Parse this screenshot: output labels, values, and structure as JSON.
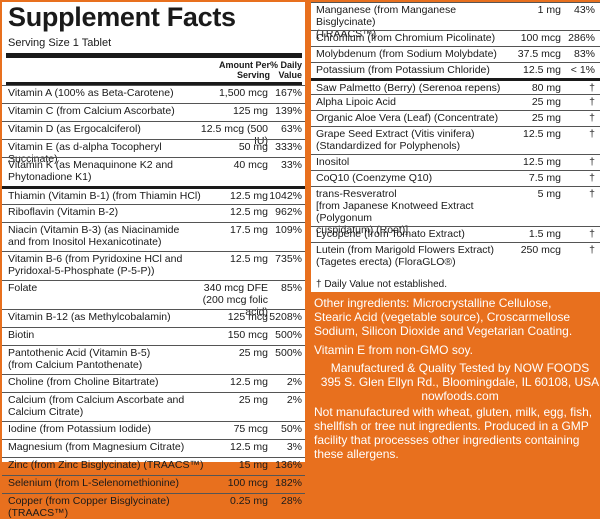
{
  "left": {
    "title": "Supplement Facts",
    "serving": "Serving Size 1 Tablet",
    "header": {
      "amount": "Amount Per\nServing",
      "dv": "% Daily\nValue"
    },
    "rows": [
      {
        "name": "Vitamin A (100% as Beta-Carotene)",
        "amount": "1,500 mcg",
        "dv": "167%"
      },
      {
        "name": "Vitamin C (from Calcium Ascorbate)",
        "amount": "125 mg",
        "dv": "139%"
      },
      {
        "name": "Vitamin D (as Ergocalciferol)",
        "amount": "12.5 mcg (500 IU)",
        "dv": "63%"
      },
      {
        "name": "Vitamin E (as d-alpha Tocopheryl Succinate)",
        "amount": "50 mg",
        "dv": "333%"
      },
      {
        "name": "Vitamin K (as Menaquinone K2 and\n   Phytonadione K1)",
        "amount": "40 mcg",
        "dv": "33%"
      },
      {
        "name": "Thiamin (Vitamin B-1) (from Thiamin HCl)",
        "amount": "12.5 mg",
        "dv": "1042%"
      },
      {
        "name": "Riboflavin (Vitamin B-2)",
        "amount": "12.5 mg",
        "dv": "962%"
      },
      {
        "name": "Niacin (Vitamin B-3) (as Niacinamide\n   and from Inositol Hexanicotinate)",
        "amount": "17.5 mg",
        "dv": "109%"
      },
      {
        "name": "Vitamin B-6 (from Pyridoxine HCl and\n   Pyridoxal-5-Phosphate (P-5-P))",
        "amount": "12.5 mg",
        "dv": "735%"
      },
      {
        "name": "Folate",
        "amount": "340 mcg DFE\n(200 mcg folic acid)",
        "dv": "85%"
      },
      {
        "name": "Vitamin B-12 (as Methylcobalamin)",
        "amount": "125 mcg",
        "dv": "5208%"
      },
      {
        "name": "Biotin",
        "amount": "150 mcg",
        "dv": "500%"
      },
      {
        "name": "Pantothenic Acid (Vitamin B-5)\n   (from Calcium Pantothenate)",
        "amount": "25 mg",
        "dv": "500%"
      },
      {
        "name": "Choline (from Choline Bitartrate)",
        "amount": "12.5 mg",
        "dv": "2%"
      },
      {
        "name": "Calcium (from Calcium Ascorbate and\n   Calcium Citrate)",
        "amount": "25 mg",
        "dv": "2%"
      },
      {
        "name": "Iodine (from Potassium Iodide)",
        "amount": "75 mcg",
        "dv": "50%"
      },
      {
        "name": "Magnesium (from Magnesium Citrate)",
        "amount": "12.5 mg",
        "dv": "3%"
      },
      {
        "name": "Zinc (from Zinc Bisglycinate) (TRAACS™)",
        "amount": "15 mg",
        "dv": "136%"
      },
      {
        "name": "Selenium (from L-Selenomethionine)",
        "amount": "100 mcg",
        "dv": "182%"
      },
      {
        "name": "Copper (from Copper Bisglycinate) (TRAACS™)",
        "amount": "0.25 mg",
        "dv": "28%"
      }
    ]
  },
  "right": {
    "rows": [
      {
        "name": "Manganese (from Manganese Bisglycinate)\n(TRAACS™)",
        "amount": "1 mg",
        "dv": "43%"
      },
      {
        "name": "Chromium (from Chromium Picolinate)",
        "amount": "100 mcg",
        "dv": "286%"
      },
      {
        "name": "Molybdenum (from Sodium Molybdate)",
        "amount": "37.5 mcg",
        "dv": "83%"
      },
      {
        "name": "Potassium (from Potassium Chloride)",
        "amount": "12.5 mg",
        "dv": "< 1%"
      },
      {
        "name": "Saw Palmetto (Berry) (Serenoa repens)",
        "amount": "80 mg",
        "dv": "†"
      },
      {
        "name": "Alpha Lipoic Acid",
        "amount": "25 mg",
        "dv": "†"
      },
      {
        "name": "Organic Aloe Vera (Leaf) (Concentrate)",
        "amount": "25 mg",
        "dv": "†"
      },
      {
        "name": "Grape Seed Extract (Vitis vinifera)\n(Standardized for Polyphenols)",
        "amount": "12.5 mg",
        "dv": "†"
      },
      {
        "name": "Inositol",
        "amount": "12.5 mg",
        "dv": "†"
      },
      {
        "name": "CoQ10 (Coenzyme Q10)",
        "amount": "7.5 mg",
        "dv": "†"
      },
      {
        "name": "trans-Resveratrol\n[from Japanese Knotweed Extract (Polygonum\ncuspidatum) (Root)]",
        "amount": "5 mg",
        "dv": "†"
      },
      {
        "name": "Lycopene (from Tomato Extract)",
        "amount": "1.5 mg",
        "dv": "†"
      },
      {
        "name": "Lutein (from Marigold Flowers Extract)\n(Tagetes erecta) (FloraGLO®)",
        "amount": "250 mcg",
        "dv": "†"
      }
    ],
    "footnote": "† Daily Value not established."
  },
  "info": {
    "other_ingredients": "Other ingredients: Microcrystalline Cellulose,\nStearic Acid (vegetable source), Croscarmellose\nSodium, Silicon Dioxide and Vegetarian Coating.",
    "vitamin_e": "Vitamin E from non-GMO soy.",
    "manufacturer": "Manufactured & Quality Tested by NOW FOODS\n395 S. Glen Ellyn Rd., Bloomingdale, IL 60108, USA\nnowfoods.com",
    "allergens": "Not manufactured with wheat, gluten, milk, egg, fish,\nshellfish or tree nut ingredients. Produced in a GMP\nfacility that processes other ingredients containing\nthese allergens."
  }
}
